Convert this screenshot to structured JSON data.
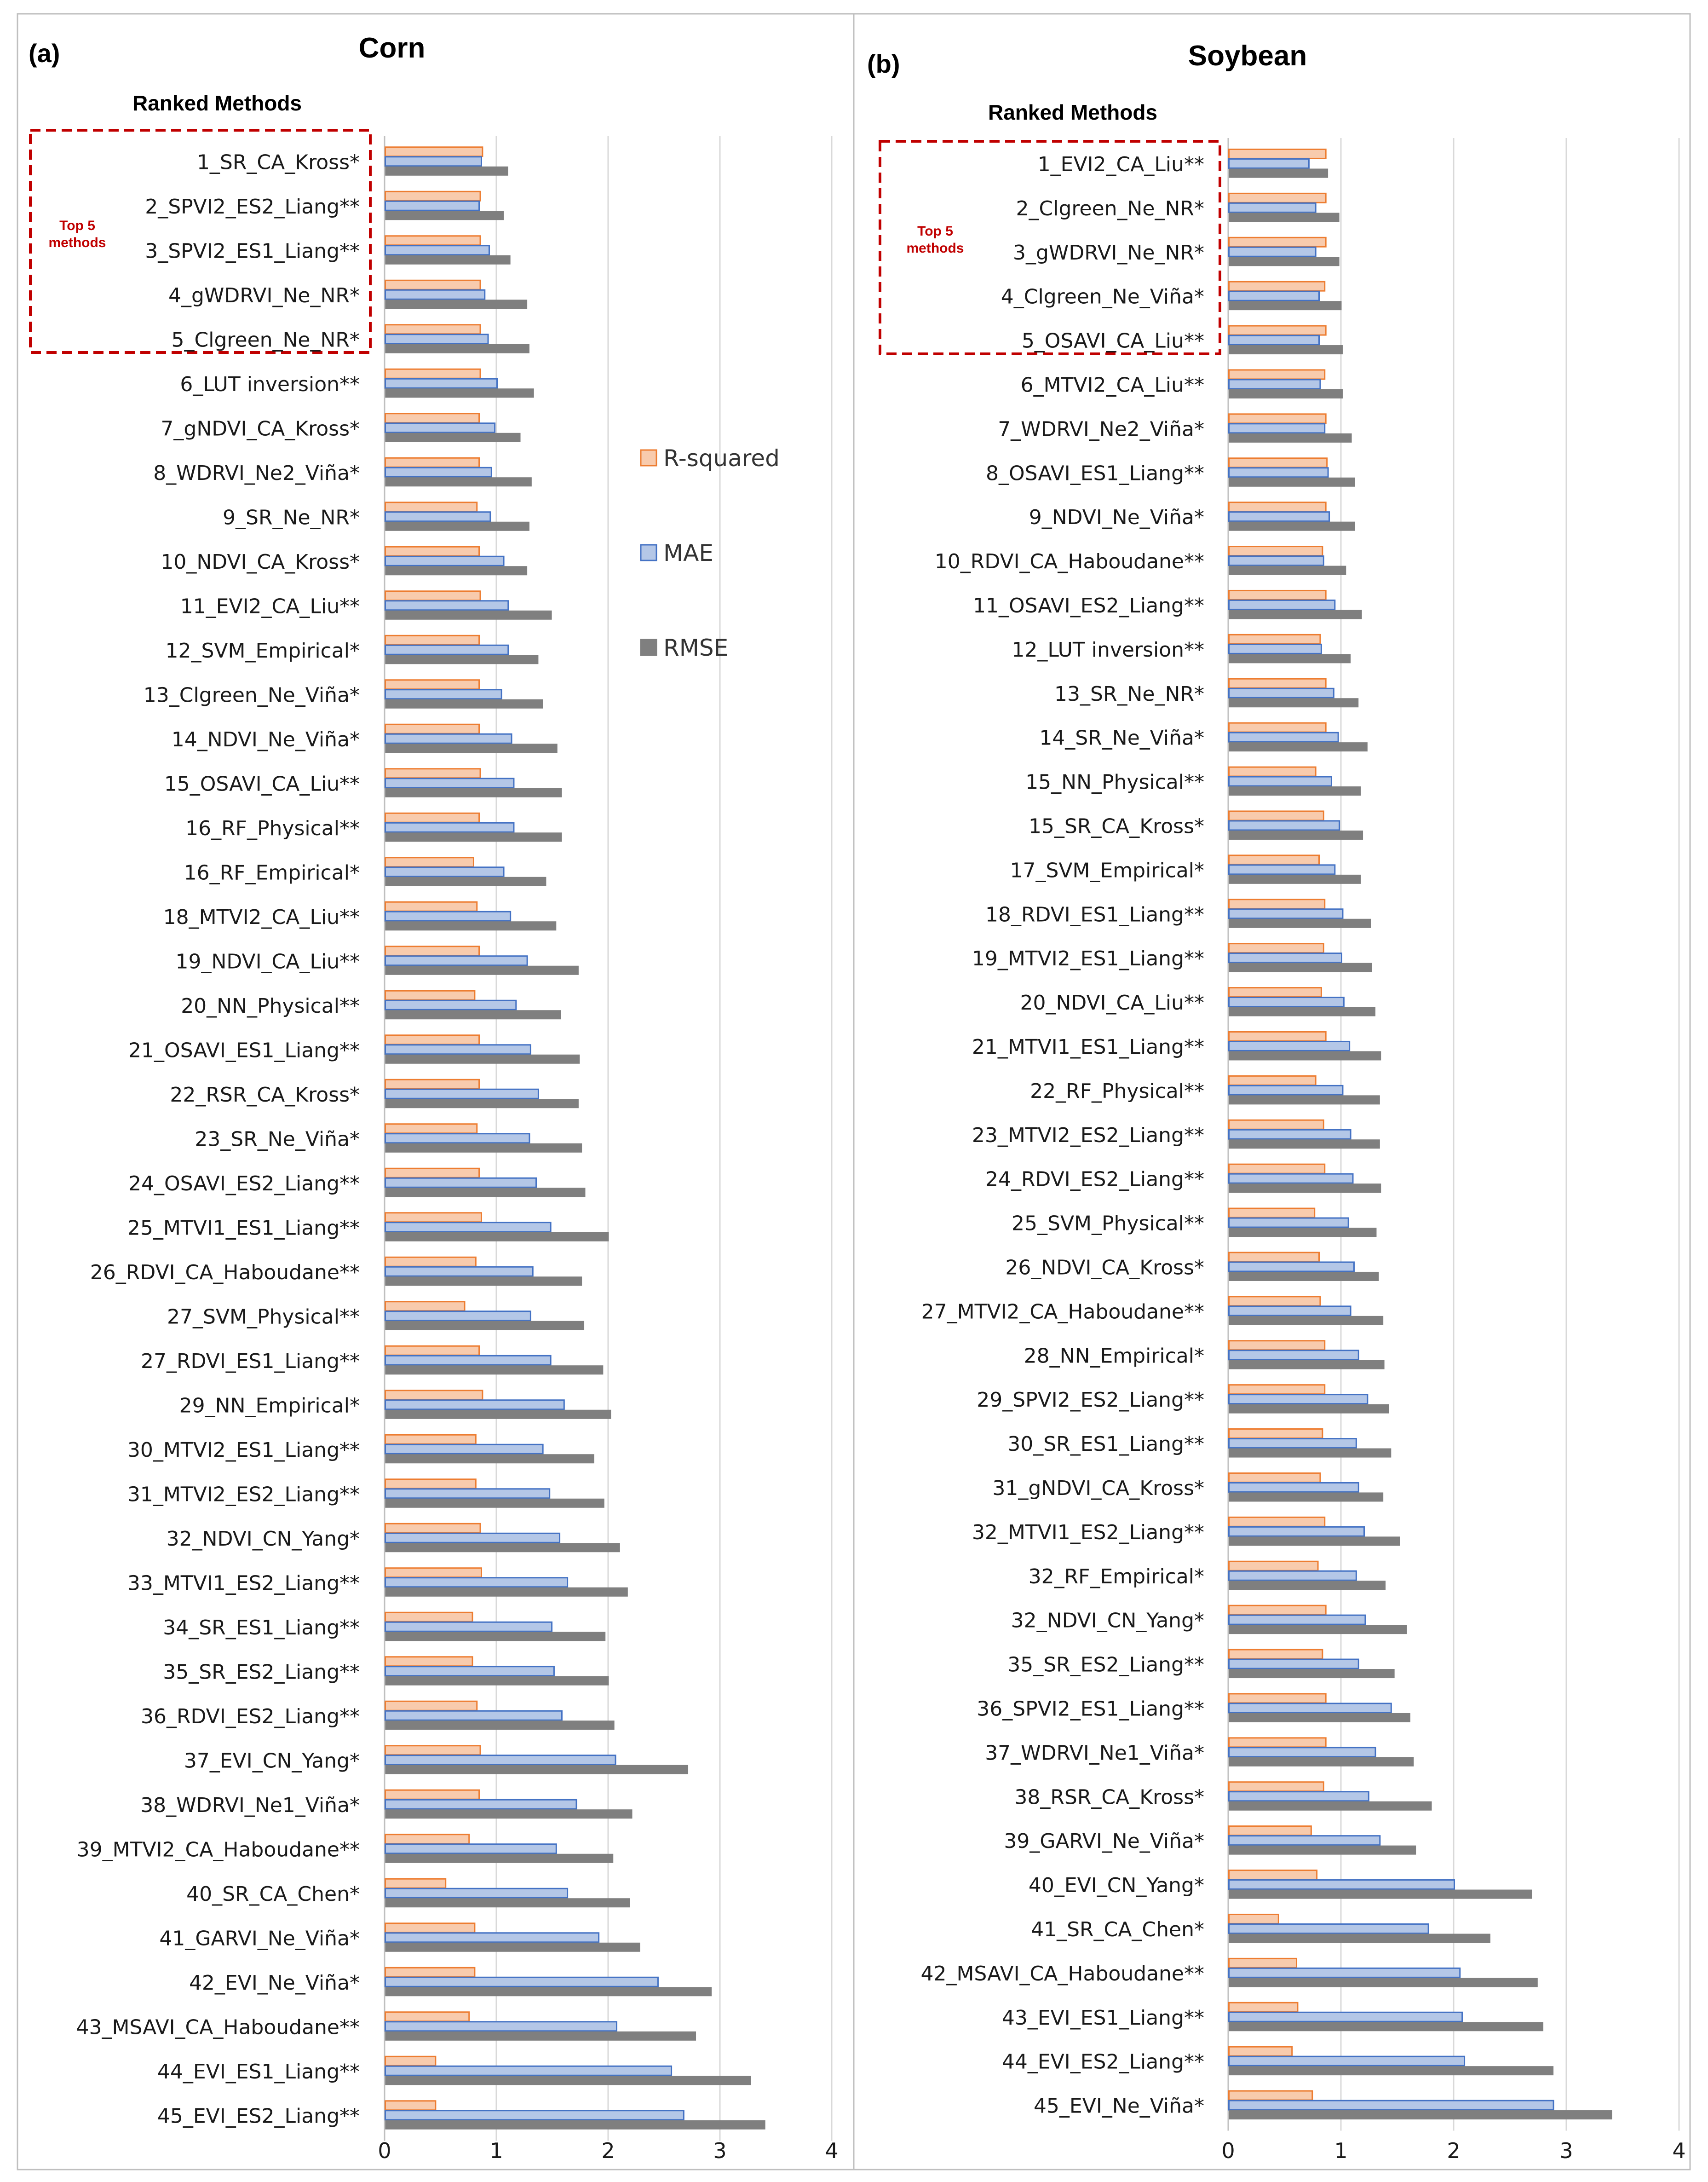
{
  "colors": {
    "r2": "#f8cbad",
    "r2_edge": "#ed7d31",
    "mae": "#b4c7e7",
    "mae_edge": "#4472c4",
    "rmse": "#7f7f7f",
    "rmse_edge": "#7f7f7f"
  },
  "legend": {
    "r2": "R-squared",
    "mae": "MAE",
    "rmse": "RMSE"
  },
  "chart_data": [
    {
      "type": "bar",
      "orientation": "horizontal",
      "panel_label": "(a)",
      "title": "Corn",
      "subtitle": "Ranked Methods",
      "top5_note": [
        "Top 5",
        "methods"
      ],
      "xlim": [
        0,
        4
      ],
      "xticks": [
        "0",
        "1",
        "2",
        "3",
        "4"
      ],
      "categories": [
        "1_SR_CA_Kross*",
        "2_SPVI2_ES2_Liang**",
        "3_SPVI2_ES1_Liang**",
        "4_gWDRVI_Ne_NR*",
        "5_Clgreen_Ne_NR*",
        "6_LUT inversion**",
        "7_gNDVI_CA_Kross*",
        "8_WDRVI_Ne2_Viña*",
        "9_SR_Ne_NR*",
        "10_NDVI_CA_Kross*",
        "11_EVI2_CA_Liu**",
        "12_SVM_Empirical*",
        "13_Clgreen_Ne_Viña*",
        "14_NDVI_Ne_Viña*",
        "15_OSAVI_CA_Liu**",
        "16_RF_Physical**",
        "16_RF_Empirical*",
        "18_MTVI2_CA_Liu**",
        "19_NDVI_CA_Liu**",
        "20_NN_Physical**",
        "21_OSAVI_ES1_Liang**",
        "22_RSR_CA_Kross*",
        "23_SR_Ne_Viña*",
        "24_OSAVI_ES2_Liang**",
        "25_MTVI1_ES1_Liang**",
        "26_RDVI_CA_Haboudane**",
        "27_SVM_Physical**",
        "27_RDVI_ES1_Liang**",
        "29_NN_Empirical*",
        "30_MTVI2_ES1_Liang**",
        "31_MTVI2_ES2_Liang**",
        "32_NDVI_CN_Yang*",
        "33_MTVI1_ES2_Liang**",
        "34_SR_ES1_Liang**",
        "35_SR_ES2_Liang**",
        "36_RDVI_ES2_Liang**",
        "37_EVI_CN_Yang*",
        "38_WDRVI_Ne1_Viña*",
        "39_MTVI2_CA_Haboudane**",
        "40_SR_CA_Chen*",
        "41_GARVI_Ne_Viña*",
        "42_EVI_Ne_Viña*",
        "43_MSAVI_CA_Haboudane**",
        "44_EVI_ES1_Liang**",
        "45_EVI_ES2_Liang**"
      ],
      "series": [
        {
          "name": "R-squared",
          "values": [
            0.87,
            0.85,
            0.85,
            0.85,
            0.85,
            0.85,
            0.84,
            0.84,
            0.82,
            0.84,
            0.85,
            0.84,
            0.84,
            0.84,
            0.85,
            0.84,
            0.79,
            0.82,
            0.84,
            0.8,
            0.84,
            0.84,
            0.82,
            0.84,
            0.86,
            0.81,
            0.71,
            0.84,
            0.87,
            0.81,
            0.81,
            0.85,
            0.86,
            0.78,
            0.78,
            0.82,
            0.85,
            0.84,
            0.75,
            0.54,
            0.8,
            0.8,
            0.75,
            0.45,
            0.45
          ]
        },
        {
          "name": "MAE",
          "values": [
            0.86,
            0.84,
            0.93,
            0.89,
            0.92,
            1.0,
            0.98,
            0.95,
            0.94,
            1.06,
            1.1,
            1.1,
            1.04,
            1.13,
            1.15,
            1.15,
            1.06,
            1.12,
            1.27,
            1.17,
            1.3,
            1.37,
            1.29,
            1.35,
            1.48,
            1.32,
            1.3,
            1.48,
            1.6,
            1.41,
            1.47,
            1.56,
            1.63,
            1.49,
            1.51,
            1.58,
            2.06,
            1.71,
            1.53,
            1.63,
            1.91,
            2.44,
            2.07,
            2.56,
            2.67
          ]
        },
        {
          "name": "RMSE",
          "values": [
            1.1,
            1.06,
            1.12,
            1.27,
            1.29,
            1.33,
            1.21,
            1.31,
            1.29,
            1.27,
            1.49,
            1.37,
            1.41,
            1.54,
            1.58,
            1.58,
            1.44,
            1.53,
            1.73,
            1.57,
            1.74,
            1.73,
            1.76,
            1.79,
            2.0,
            1.76,
            1.78,
            1.95,
            2.02,
            1.87,
            1.96,
            2.1,
            2.17,
            1.97,
            2.0,
            2.05,
            2.71,
            2.21,
            2.04,
            2.19,
            2.28,
            2.92,
            2.78,
            3.27,
            3.4
          ]
        }
      ]
    },
    {
      "type": "bar",
      "orientation": "horizontal",
      "panel_label": "(b)",
      "title": "Soybean",
      "subtitle": "Ranked Methods",
      "top5_note": [
        "Top 5",
        "methods"
      ],
      "xlim": [
        0,
        4
      ],
      "xticks": [
        "0",
        "1",
        "2",
        "3",
        "4"
      ],
      "categories": [
        "1_EVI2_CA_Liu**",
        "2_Clgreen_Ne_NR*",
        "3_gWDRVI_Ne_NR*",
        "4_Clgreen_Ne_Viña*",
        "5_OSAVI_CA_Liu**",
        "6_MTVI2_CA_Liu**",
        "7_WDRVI_Ne2_Viña*",
        "8_OSAVI_ES1_Liang**",
        "9_NDVI_Ne_Viña*",
        "10_RDVI_CA_Haboudane**",
        "11_OSAVI_ES2_Liang**",
        "12_LUT inversion**",
        "13_SR_Ne_NR*",
        "14_SR_Ne_Viña*",
        "15_NN_Physical**",
        "15_SR_CA_Kross*",
        "17_SVM_Empirical*",
        "18_RDVI_ES1_Liang**",
        "19_MTVI2_ES1_Liang**",
        "20_NDVI_CA_Liu**",
        "21_MTVI1_ES1_Liang**",
        "22_RF_Physical**",
        "23_MTVI2_ES2_Liang**",
        "24_RDVI_ES2_Liang**",
        "25_SVM_Physical**",
        "26_NDVI_CA_Kross*",
        "27_MTVI2_CA_Haboudane**",
        "28_NN_Empirical*",
        "29_SPVI2_ES2_Liang**",
        "30_SR_ES1_Liang**",
        "31_gNDVI_CA_Kross*",
        "32_MTVI1_ES2_Liang**",
        "32_RF_Empirical*",
        "32_NDVI_CN_Yang*",
        "35_SR_ES2_Liang**",
        "36_SPVI2_ES1_Liang**",
        "37_WDRVI_Ne1_Viña*",
        "38_RSR_CA_Kross*",
        "39_GARVI_Ne_Viña*",
        "40_EVI_CN_Yang*",
        "41_SR_CA_Chen*",
        "42_MSAVI_CA_Haboudane**",
        "43_EVI_ES1_Liang**",
        "44_EVI_ES2_Liang**",
        "45_EVI_Ne_Viña*"
      ],
      "series": [
        {
          "name": "R-squared",
          "values": [
            0.86,
            0.86,
            0.86,
            0.85,
            0.86,
            0.85,
            0.86,
            0.87,
            0.86,
            0.83,
            0.86,
            0.81,
            0.86,
            0.86,
            0.77,
            0.84,
            0.8,
            0.85,
            0.84,
            0.82,
            0.86,
            0.77,
            0.84,
            0.85,
            0.76,
            0.8,
            0.81,
            0.85,
            0.85,
            0.83,
            0.81,
            0.85,
            0.79,
            0.86,
            0.83,
            0.86,
            0.86,
            0.84,
            0.73,
            0.78,
            0.44,
            0.6,
            0.61,
            0.56,
            0.74
          ]
        },
        {
          "name": "MAE",
          "values": [
            0.71,
            0.77,
            0.77,
            0.8,
            0.8,
            0.81,
            0.85,
            0.88,
            0.89,
            0.84,
            0.94,
            0.82,
            0.93,
            0.97,
            0.91,
            0.98,
            0.94,
            1.01,
            1.0,
            1.02,
            1.07,
            1.01,
            1.08,
            1.1,
            1.06,
            1.11,
            1.08,
            1.15,
            1.23,
            1.13,
            1.15,
            1.2,
            1.13,
            1.21,
            1.15,
            1.44,
            1.3,
            1.24,
            1.34,
            2.0,
            1.77,
            2.05,
            2.07,
            2.09,
            2.88
          ]
        },
        {
          "name": "RMSE",
          "values": [
            0.88,
            0.98,
            0.98,
            1.0,
            1.01,
            1.01,
            1.09,
            1.12,
            1.12,
            1.04,
            1.18,
            1.08,
            1.15,
            1.23,
            1.17,
            1.19,
            1.17,
            1.26,
            1.27,
            1.3,
            1.35,
            1.34,
            1.34,
            1.35,
            1.31,
            1.33,
            1.37,
            1.38,
            1.42,
            1.44,
            1.37,
            1.52,
            1.39,
            1.58,
            1.47,
            1.61,
            1.64,
            1.8,
            1.66,
            2.69,
            2.32,
            2.74,
            2.79,
            2.88,
            3.4
          ]
        }
      ]
    }
  ]
}
